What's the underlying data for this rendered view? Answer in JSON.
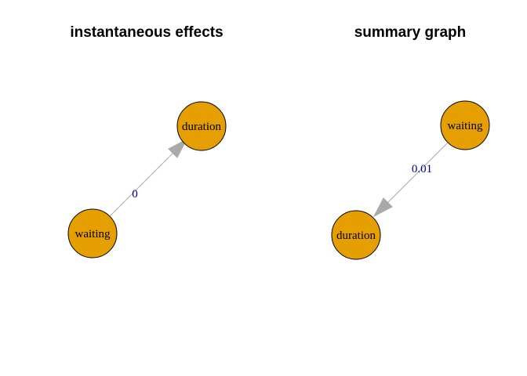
{
  "node_fill": "#E69F00",
  "node_stroke": "#000000",
  "edge_color": "#A9A9A9",
  "edge_label_color": "#00008B",
  "panels": [
    {
      "title": "instantaneous effects",
      "nodes": [
        {
          "id": "waiting",
          "label": "waiting"
        },
        {
          "id": "duration",
          "label": "duration"
        }
      ],
      "edges": [
        {
          "from": "waiting",
          "to": "duration",
          "label": "0"
        }
      ]
    },
    {
      "title": "summary graph",
      "nodes": [
        {
          "id": "waiting",
          "label": "waiting"
        },
        {
          "id": "duration",
          "label": "duration"
        }
      ],
      "edges": [
        {
          "from": "waiting",
          "to": "duration",
          "label": "0.01"
        }
      ]
    }
  ]
}
